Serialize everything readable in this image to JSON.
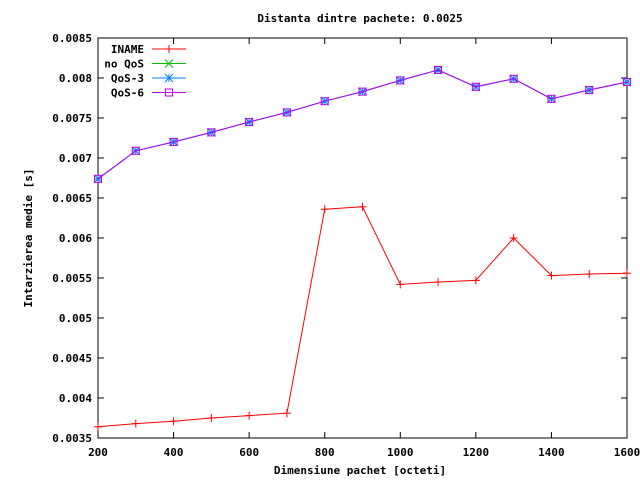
{
  "chart_data": {
    "type": "line",
    "title": "Distanta dintre pachete: 0.0025",
    "xlabel": "Dimensiune pachet [octeti]",
    "ylabel": "Intarzierea medie [s]",
    "xlim": [
      200,
      1600
    ],
    "ylim": [
      0.0035,
      0.0085
    ],
    "x_ticks": [
      "200",
      "400",
      "600",
      "800",
      "1000",
      "1200",
      "1400",
      "1600"
    ],
    "y_ticks": [
      "0.0035",
      "0.004",
      "0.0045",
      "0.005",
      "0.0055",
      "0.006",
      "0.0065",
      "0.007",
      "0.0075",
      "0.008",
      "0.0085"
    ],
    "grid": false,
    "legend_position": "top-left",
    "x": [
      200,
      300,
      400,
      500,
      600,
      700,
      800,
      900,
      1000,
      1100,
      1200,
      1300,
      1400,
      1500,
      1600
    ],
    "series": [
      {
        "name": "INAME",
        "color": "#ff0000",
        "marker": "plus",
        "values": [
          0.00364,
          0.00368,
          0.00371,
          0.00375,
          0.00378,
          0.00381,
          0.00636,
          0.00639,
          0.00542,
          0.00545,
          0.00547,
          0.006,
          0.00553,
          0.00555,
          0.00556
        ]
      },
      {
        "name": "no QoS",
        "color": "#00c000",
        "marker": "x",
        "values": [
          0.00674,
          0.00709,
          0.0072,
          0.00732,
          0.00745,
          0.00757,
          0.00771,
          0.00783,
          0.00797,
          0.0081,
          0.00789,
          0.00799,
          0.00774,
          0.00785,
          0.00795
        ]
      },
      {
        "name": "QoS-3",
        "color": "#0080ff",
        "marker": "star",
        "values": [
          0.00674,
          0.00709,
          0.0072,
          0.00732,
          0.00745,
          0.00757,
          0.00771,
          0.00783,
          0.00797,
          0.0081,
          0.00789,
          0.00799,
          0.00774,
          0.00785,
          0.00795
        ]
      },
      {
        "name": "QoS-6",
        "color": "#c000ff",
        "marker": "square",
        "values": [
          0.00674,
          0.00709,
          0.0072,
          0.00732,
          0.00745,
          0.00757,
          0.00771,
          0.00783,
          0.00797,
          0.0081,
          0.00789,
          0.00799,
          0.00774,
          0.00785,
          0.00795
        ]
      }
    ]
  }
}
